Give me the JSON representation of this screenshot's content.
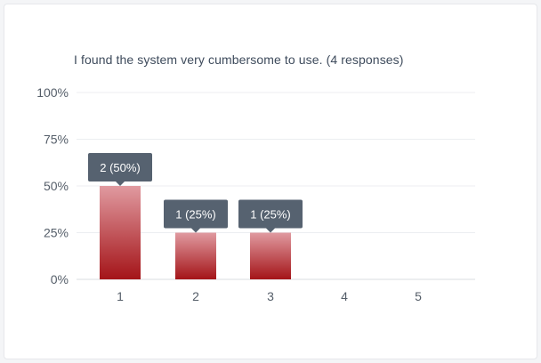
{
  "question": "I found the system very cumbersome to use. (4 responses)",
  "colors": {
    "bar_top": "#e09aa0",
    "bar_bottom": "#a41418",
    "tooltip": "#566270",
    "grid": "#eceef1",
    "axis": "#d9dce0"
  },
  "chart_data": {
    "type": "bar",
    "title": "I found the system very cumbersome to use. (4 responses)",
    "categories": [
      "1",
      "2",
      "3",
      "4",
      "5"
    ],
    "values": [
      50,
      25,
      25,
      0,
      0
    ],
    "labels": [
      "2 (50%)",
      "1 (25%)",
      "1 (25%)",
      "",
      ""
    ],
    "yticks": [
      "0%",
      "25%",
      "50%",
      "75%",
      "100%"
    ],
    "ylim": [
      0,
      100
    ],
    "xlabel": "",
    "ylabel": "",
    "grid": true
  }
}
